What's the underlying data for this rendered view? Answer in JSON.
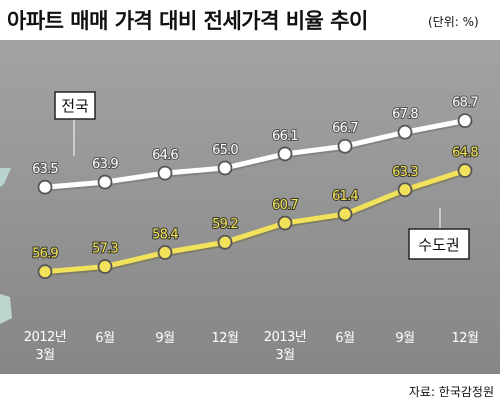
{
  "chart_data": {
    "type": "line",
    "title": "아파트 매매 가격 대비 전세가격 비율 추이",
    "unit_note": "(단위: %)",
    "source": "자료: 한국감정원",
    "x_labels": [
      [
        "2012년",
        "3월"
      ],
      [
        "6월"
      ],
      [
        "9월"
      ],
      [
        "12월"
      ],
      [
        "2013년",
        "3월"
      ],
      [
        "6월"
      ],
      [
        "9월"
      ],
      [
        "12월"
      ]
    ],
    "ylim": [
      50,
      75
    ],
    "grid": false,
    "colors": {
      "national": "#ffffff",
      "capital": "#f2e15a",
      "background": "#8e8e8e"
    },
    "series": [
      {
        "name": "전국",
        "values": [
          63.5,
          63.9,
          64.6,
          65.0,
          66.1,
          66.7,
          67.8,
          68.7
        ],
        "labels": [
          "63.5",
          "63.9",
          "64.6",
          "65.0",
          "66.1",
          "66.7",
          "67.8",
          "68.7"
        ]
      },
      {
        "name": "수도권",
        "values": [
          56.9,
          57.3,
          58.4,
          59.2,
          60.7,
          61.4,
          63.3,
          64.8
        ],
        "labels": [
          "56.9",
          "57.3",
          "58.4",
          "59.2",
          "60.7",
          "61.4",
          "63.3",
          "64.8"
        ]
      }
    ]
  }
}
